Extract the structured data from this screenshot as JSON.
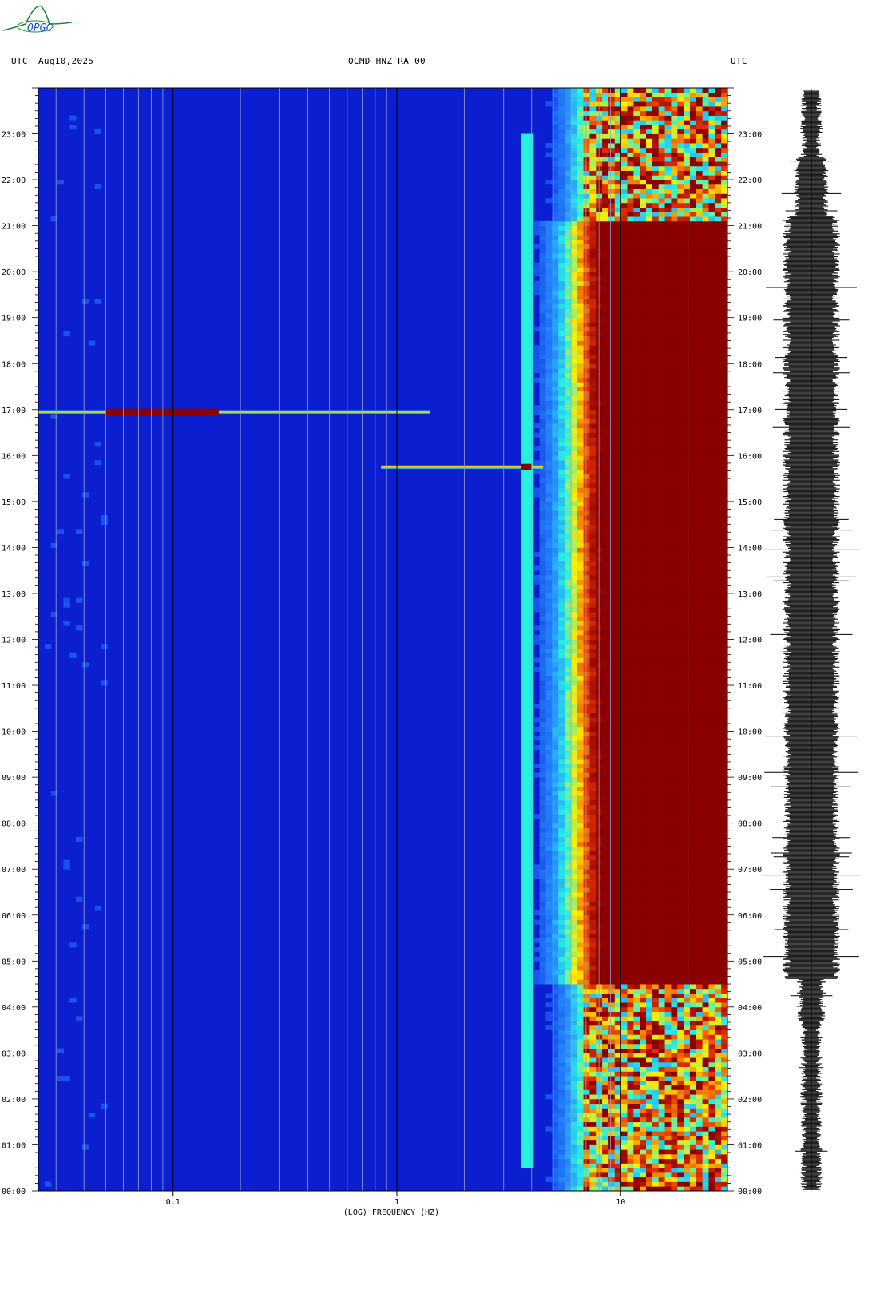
{
  "header": {
    "left_tz": "UTC",
    "date": "Aug10,2025",
    "station": "OCMD HNZ RA 00",
    "right_tz": "UTC"
  },
  "logo": {
    "text": "OPGC"
  },
  "colors": {
    "background": "#0b1fd0",
    "quiet": "#0a17c9",
    "moderate": "#2f8cff",
    "elevated": "#29f0e0",
    "high": "#ffef00",
    "saturated": "#8b0000",
    "trace": "#000000"
  },
  "chart_data": {
    "type": "heatmap",
    "title": "OCMD HNZ RA 00",
    "xlabel": "(LOG) FREQUENCY (HZ)",
    "ylabel": "UTC",
    "x_scale": "log",
    "x_range_hz": [
      0.025,
      30
    ],
    "x_major_ticks": [
      {
        "value": 0.1,
        "label": "0.1"
      },
      {
        "value": 1,
        "label": "1"
      },
      {
        "value": 10,
        "label": "10"
      }
    ],
    "y_range": [
      "00:00",
      "24:00"
    ],
    "y_tick_labels": [
      "00:00",
      "01:00",
      "02:00",
      "03:00",
      "04:00",
      "05:00",
      "06:00",
      "07:00",
      "08:00",
      "09:00",
      "10:00",
      "11:00",
      "12:00",
      "13:00",
      "14:00",
      "15:00",
      "16:00",
      "17:00",
      "18:00",
      "19:00",
      "20:00",
      "21:00",
      "22:00",
      "23:00"
    ],
    "noise_edge_hz": {
      "night": 7.5,
      "day": 6.5
    },
    "saturation_start_hz": 8.5,
    "saturation_hours": [
      4.5,
      21.1
    ],
    "events": [
      {
        "time": "16:57",
        "freq_range_hz": [
          0.025,
          1.4
        ],
        "peak_range_hz": [
          0.05,
          0.16
        ],
        "description_level": "saturated"
      },
      {
        "time": "15:45",
        "freq_range_hz": [
          0.85,
          4.5
        ],
        "peak_range_hz": [
          3.6,
          4.0
        ],
        "description_level": "saturated"
      }
    ],
    "persistent_line_hz": 3.8,
    "seismogram_panel": "right"
  }
}
